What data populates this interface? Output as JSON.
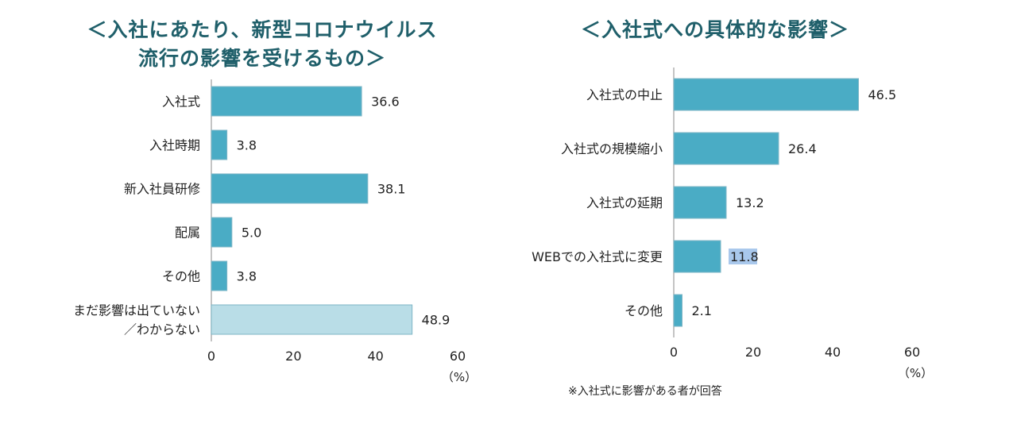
{
  "chart_data": [
    {
      "type": "bar",
      "orientation": "horizontal",
      "title_lines": [
        "＜入社にあたり、新型コロナウイルス",
        "流行の影響を受けるもの＞"
      ],
      "categories": [
        "入社式",
        "入社時期",
        "新入社員研修",
        "配属",
        "その他",
        "まだ影響は出ていない／わからない"
      ],
      "category_lines": [
        [
          "入社式"
        ],
        [
          "入社時期"
        ],
        [
          "新入社員研修"
        ],
        [
          "配属"
        ],
        [
          "その他"
        ],
        [
          "まだ影響は出ていない",
          "／わからない"
        ]
      ],
      "values": [
        36.6,
        3.8,
        38.1,
        5.0,
        3.8,
        48.9
      ],
      "value_labels": [
        "36.6",
        "3.8",
        "38.1",
        "5.0",
        "3.8",
        "48.9"
      ],
      "bar_colors": [
        "#4aacc5",
        "#4aacc5",
        "#4aacc5",
        "#4aacc5",
        "#4aacc5",
        "#b9dde7"
      ],
      "xlim": [
        0,
        60
      ],
      "xticks": [
        0,
        20,
        40,
        60
      ],
      "unit_label": "（%）"
    },
    {
      "type": "bar",
      "orientation": "horizontal",
      "title": "＜入社式への具体的な影響＞",
      "categories": [
        "入社式の中止",
        "入社式の規模縮小",
        "入社式の延期",
        "WEBでの入社式に変更",
        "その他"
      ],
      "category_lines": [
        [
          "入社式の中止"
        ],
        [
          "入社式の規模縮小"
        ],
        [
          "入社式の延期"
        ],
        [
          "WEBでの入社式に変更"
        ],
        [
          "その他"
        ]
      ],
      "values": [
        46.5,
        26.4,
        13.2,
        11.8,
        2.1
      ],
      "value_labels": [
        "46.5",
        "26.4",
        "13.2",
        "11.8",
        "2.1"
      ],
      "bar_colors": [
        "#4aacc5",
        "#4aacc5",
        "#4aacc5",
        "#4aacc5",
        "#4aacc5"
      ],
      "highlighted_value_index": 3,
      "xlim": [
        0,
        60
      ],
      "xticks": [
        0,
        20,
        40,
        60
      ],
      "unit_label": "（%）",
      "footnote": "※入社式に影響がある者が回答"
    }
  ]
}
